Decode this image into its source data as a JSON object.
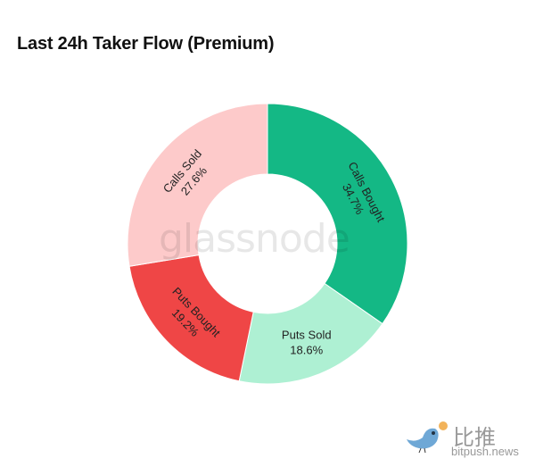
{
  "chart_data": {
    "type": "pie",
    "variant": "donut",
    "title": "Last 24h Taker Flow (Premium)",
    "slices": [
      {
        "label": "Calls Bought",
        "value": 34.7,
        "value_label": "34.7%",
        "color": "#14b885"
      },
      {
        "label": "Puts Sold",
        "value": 18.6,
        "value_label": "18.6%",
        "color": "#aef0d3"
      },
      {
        "label": "Puts Bought",
        "value": 19.2,
        "value_label": "19.2%",
        "color": "#ef4646"
      },
      {
        "label": "Calls Sold",
        "value": 27.6,
        "value_label": "27.6%",
        "color": "#fdcaca"
      }
    ],
    "start": "top",
    "direction": "clockwise",
    "legend": "none"
  },
  "watermark": "glassnode",
  "logo": {
    "cn": "比推",
    "en": "bitpush.news",
    "icon": "bird-icon"
  }
}
